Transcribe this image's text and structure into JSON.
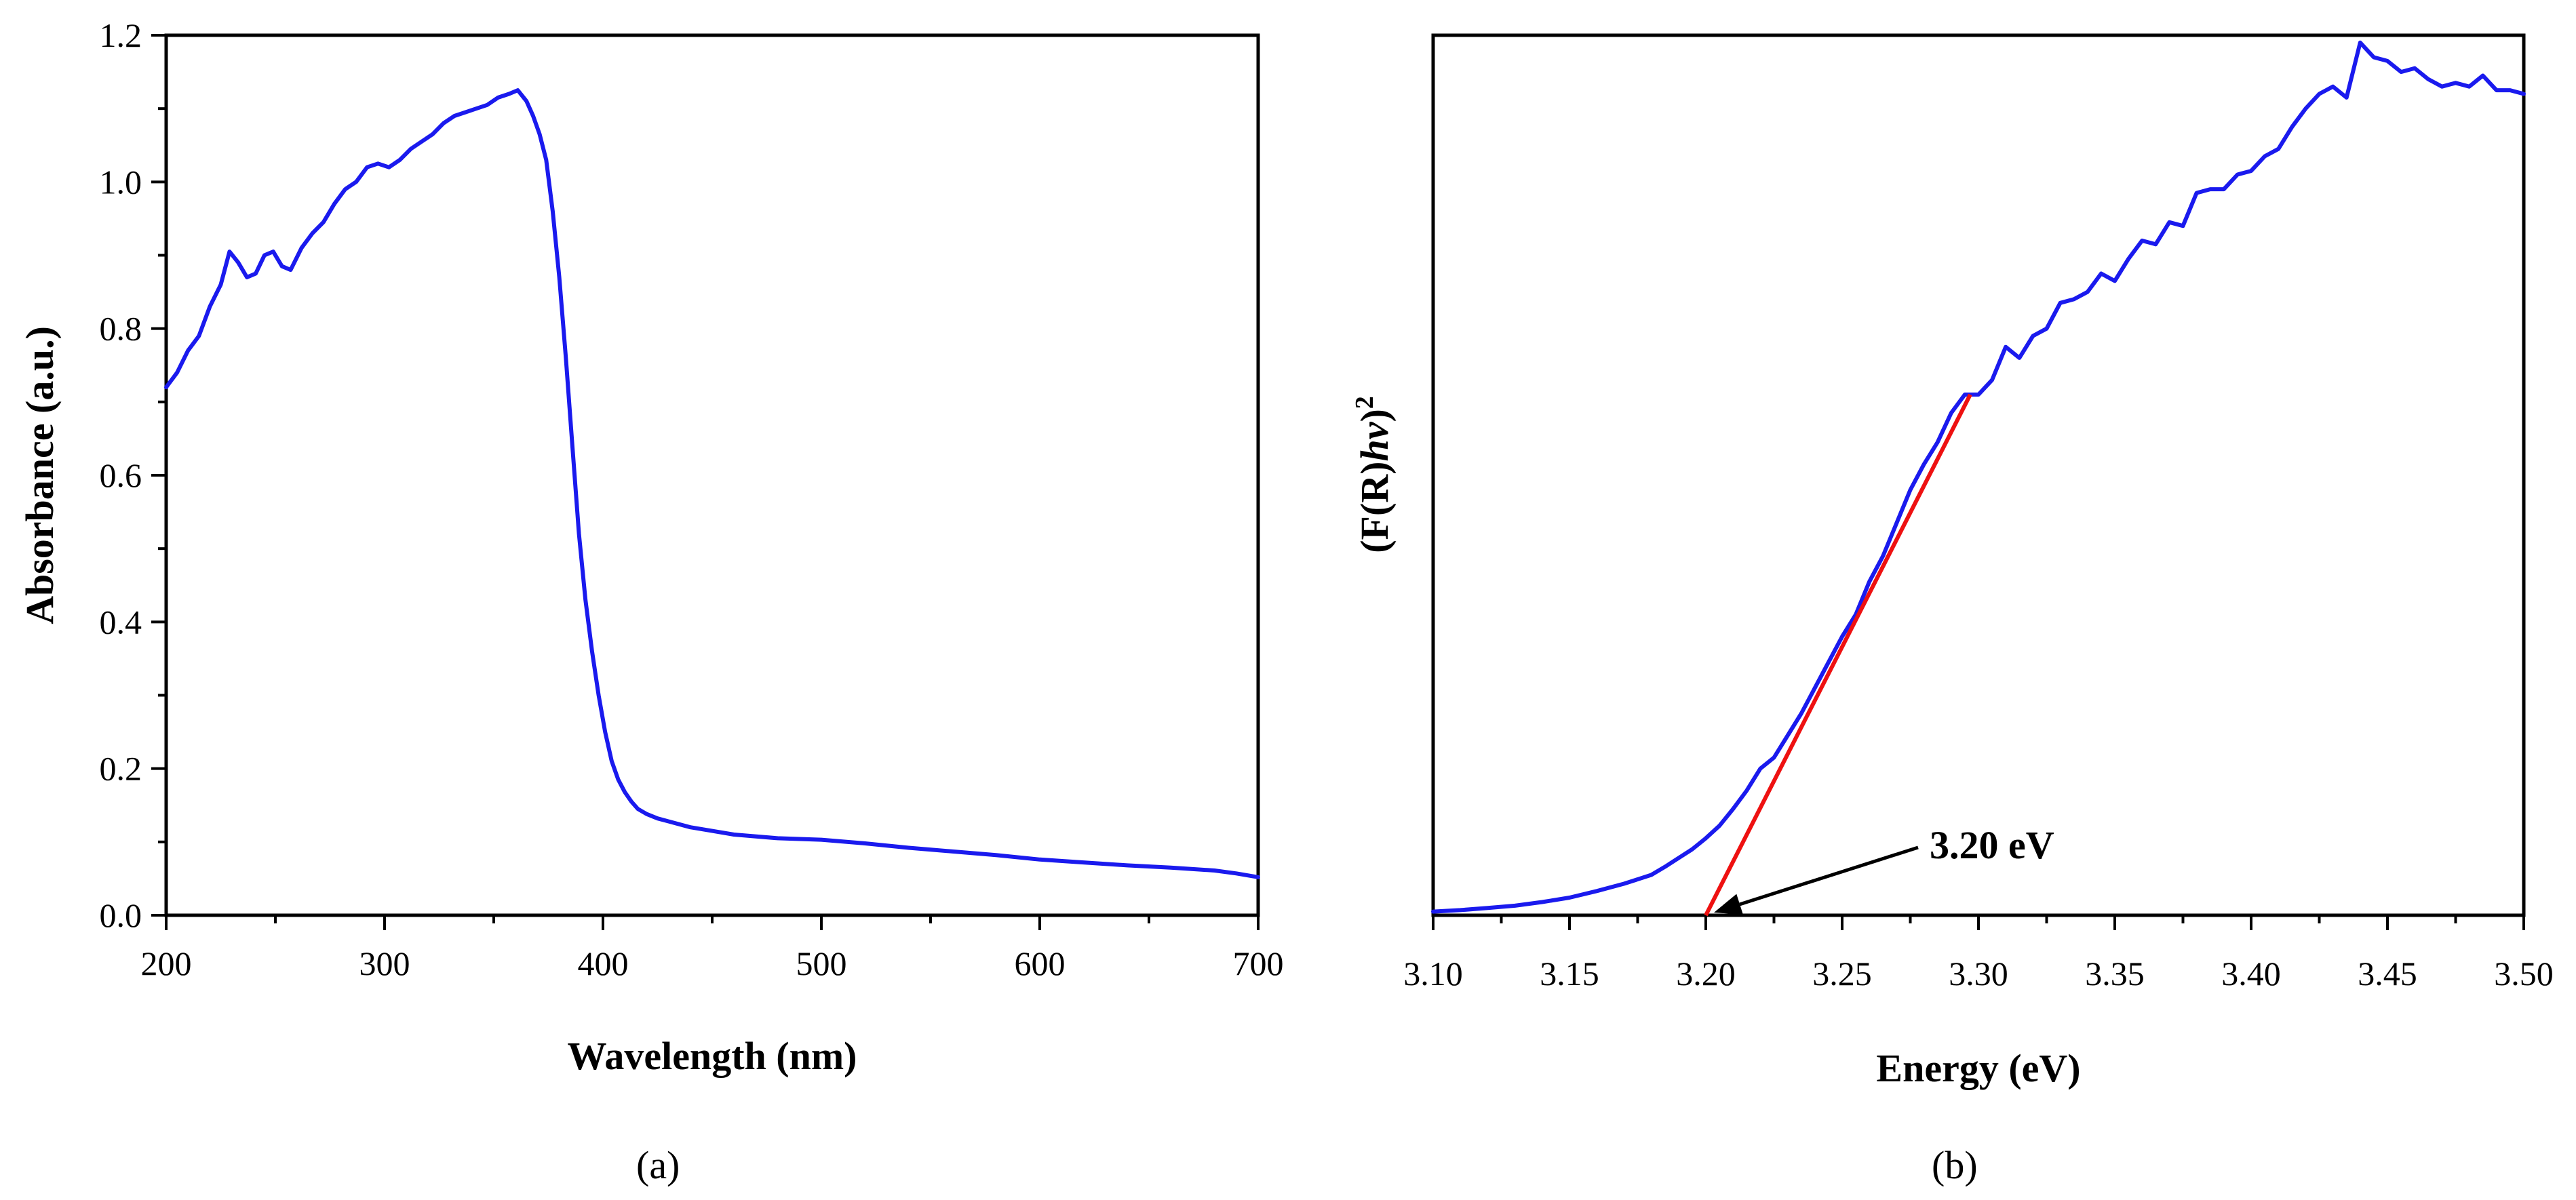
{
  "colors": {
    "series": "#1a1aee",
    "fit": "#ee1111",
    "axis": "#000000"
  },
  "chart_data": [
    {
      "type": "line",
      "panel_label": "(a)",
      "title": "",
      "xlabel": "Wavelength (nm)",
      "ylabel": "Absorbance (a.u.)",
      "xlim": [
        200,
        700
      ],
      "ylim": [
        0.0,
        1.2
      ],
      "x_ticks": [
        "200",
        "300",
        "400",
        "500",
        "600",
        "700"
      ],
      "y_ticks": [
        "0.0",
        "0.2",
        "0.4",
        "0.6",
        "0.8",
        "1.0",
        "1.2"
      ],
      "series": [
        {
          "name": "Absorbance",
          "x": [
            200,
            205,
            210,
            215,
            220,
            225,
            229,
            233,
            237,
            241,
            245,
            249,
            253,
            257,
            262,
            267,
            272,
            277,
            282,
            287,
            292,
            297,
            302,
            307,
            312,
            317,
            322,
            327,
            332,
            337,
            342,
            347,
            352,
            357,
            361,
            365,
            368,
            371,
            374,
            377,
            380,
            383,
            386,
            389,
            392,
            395,
            398,
            401,
            404,
            407,
            410,
            413,
            416,
            420,
            425,
            430,
            440,
            450,
            460,
            480,
            500,
            520,
            540,
            560,
            580,
            600,
            620,
            640,
            660,
            680,
            690,
            700
          ],
          "y": [
            0.72,
            0.74,
            0.77,
            0.79,
            0.83,
            0.86,
            0.905,
            0.89,
            0.87,
            0.875,
            0.9,
            0.905,
            0.885,
            0.88,
            0.91,
            0.93,
            0.945,
            0.97,
            0.99,
            1.0,
            1.02,
            1.025,
            1.02,
            1.03,
            1.045,
            1.055,
            1.065,
            1.08,
            1.09,
            1.095,
            1.1,
            1.105,
            1.115,
            1.12,
            1.125,
            1.11,
            1.09,
            1.065,
            1.03,
            0.96,
            0.87,
            0.76,
            0.64,
            0.52,
            0.43,
            0.36,
            0.3,
            0.25,
            0.21,
            0.185,
            0.168,
            0.155,
            0.145,
            0.138,
            0.132,
            0.128,
            0.12,
            0.115,
            0.11,
            0.105,
            0.103,
            0.098,
            0.092,
            0.087,
            0.082,
            0.076,
            0.072,
            0.068,
            0.065,
            0.061,
            0.057,
            0.052
          ]
        }
      ]
    },
    {
      "type": "line",
      "panel_label": "(b)",
      "title": "",
      "xlabel": "Energy (eV)",
      "ylabel_main": "(F(R)",
      "ylabel_italic": "hv",
      "ylabel_close": ")",
      "ylabel_sup": "2",
      "xlim": [
        3.1,
        3.5
      ],
      "ylim": [
        0,
        1.2
      ],
      "x_ticks": [
        "3.10",
        "3.15",
        "3.20",
        "3.25",
        "3.30",
        "3.35",
        "3.40",
        "3.45",
        "3.50"
      ],
      "annotation": {
        "text": "3.20 eV",
        "x": 3.2
      },
      "fit_line": {
        "x": [
          3.2,
          3.297
        ],
        "y": [
          0.0,
          0.71
        ]
      },
      "series": [
        {
          "name": "(F(R)hv)^2",
          "x": [
            3.1,
            3.11,
            3.12,
            3.13,
            3.14,
            3.15,
            3.16,
            3.17,
            3.18,
            3.185,
            3.19,
            3.195,
            3.2,
            3.205,
            3.21,
            3.215,
            3.22,
            3.225,
            3.23,
            3.235,
            3.24,
            3.245,
            3.25,
            3.255,
            3.26,
            3.265,
            3.27,
            3.275,
            3.28,
            3.285,
            3.29,
            3.295,
            3.3,
            3.305,
            3.31,
            3.315,
            3.32,
            3.325,
            3.33,
            3.335,
            3.34,
            3.345,
            3.35,
            3.355,
            3.36,
            3.365,
            3.37,
            3.375,
            3.38,
            3.385,
            3.39,
            3.395,
            3.4,
            3.405,
            3.41,
            3.415,
            3.42,
            3.425,
            3.43,
            3.435,
            3.44,
            3.445,
            3.45,
            3.455,
            3.46,
            3.465,
            3.47,
            3.475,
            3.48,
            3.485,
            3.49,
            3.495,
            3.5
          ],
          "y": [
            0.005,
            0.007,
            0.01,
            0.013,
            0.018,
            0.024,
            0.033,
            0.043,
            0.055,
            0.066,
            0.078,
            0.09,
            0.105,
            0.122,
            0.145,
            0.17,
            0.2,
            0.215,
            0.245,
            0.275,
            0.31,
            0.345,
            0.38,
            0.41,
            0.455,
            0.49,
            0.535,
            0.58,
            0.615,
            0.645,
            0.685,
            0.71,
            0.71,
            0.73,
            0.775,
            0.76,
            0.79,
            0.8,
            0.835,
            0.84,
            0.85,
            0.875,
            0.865,
            0.895,
            0.92,
            0.915,
            0.945,
            0.94,
            0.985,
            0.99,
            0.99,
            1.01,
            1.015,
            1.035,
            1.045,
            1.075,
            1.1,
            1.12,
            1.13,
            1.115,
            1.19,
            1.17,
            1.165,
            1.15,
            1.155,
            1.14,
            1.13,
            1.135,
            1.13,
            1.145,
            1.125,
            1.125,
            1.12
          ]
        }
      ]
    }
  ]
}
